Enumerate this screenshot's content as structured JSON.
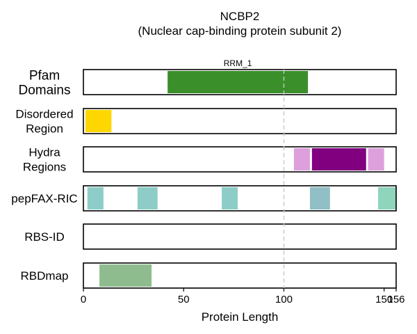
{
  "chart_data": {
    "type": "protein-track",
    "title": "NCBP2",
    "subtitle": "(Nuclear cap-binding protein subunit 2)",
    "xlabel": "Protein Length",
    "protein_length": 156,
    "xlim": [
      0,
      156
    ],
    "xticks": [
      0,
      50,
      100,
      150,
      156
    ],
    "reference_line_x": 100,
    "tracks": [
      {
        "label_lines": [
          "Pfam",
          "Domains"
        ],
        "features": [
          {
            "start": 42,
            "end": 112,
            "color": "#3a8f2a",
            "label": "RRM_1"
          }
        ]
      },
      {
        "label_lines": [
          "Disordered",
          "Region"
        ],
        "features": [
          {
            "start": 1,
            "end": 14,
            "color": "#ffd700"
          }
        ]
      },
      {
        "label_lines": [
          "Hydra",
          "Regions"
        ],
        "features": [
          {
            "start": 105,
            "end": 113,
            "color": "#dda0dd"
          },
          {
            "start": 114,
            "end": 141,
            "color": "#800080"
          },
          {
            "start": 142,
            "end": 150,
            "color": "#dda0dd"
          }
        ]
      },
      {
        "label_lines": [
          "pepFAX-RIC"
        ],
        "features": [
          {
            "start": 2,
            "end": 10,
            "color": "#8ecdc7"
          },
          {
            "start": 27,
            "end": 37,
            "color": "#8ecdc7"
          },
          {
            "start": 69,
            "end": 77,
            "color": "#8ecdc7"
          },
          {
            "start": 113,
            "end": 123,
            "color": "#91bfc6"
          },
          {
            "start": 147,
            "end": 156,
            "color": "#8fd5bb"
          }
        ]
      },
      {
        "label_lines": [
          "RBS-ID"
        ],
        "features": []
      },
      {
        "label_lines": [
          "RBDmap"
        ],
        "features": [
          {
            "start": 8,
            "end": 34,
            "color": "#8fbc8f"
          }
        ]
      }
    ]
  }
}
